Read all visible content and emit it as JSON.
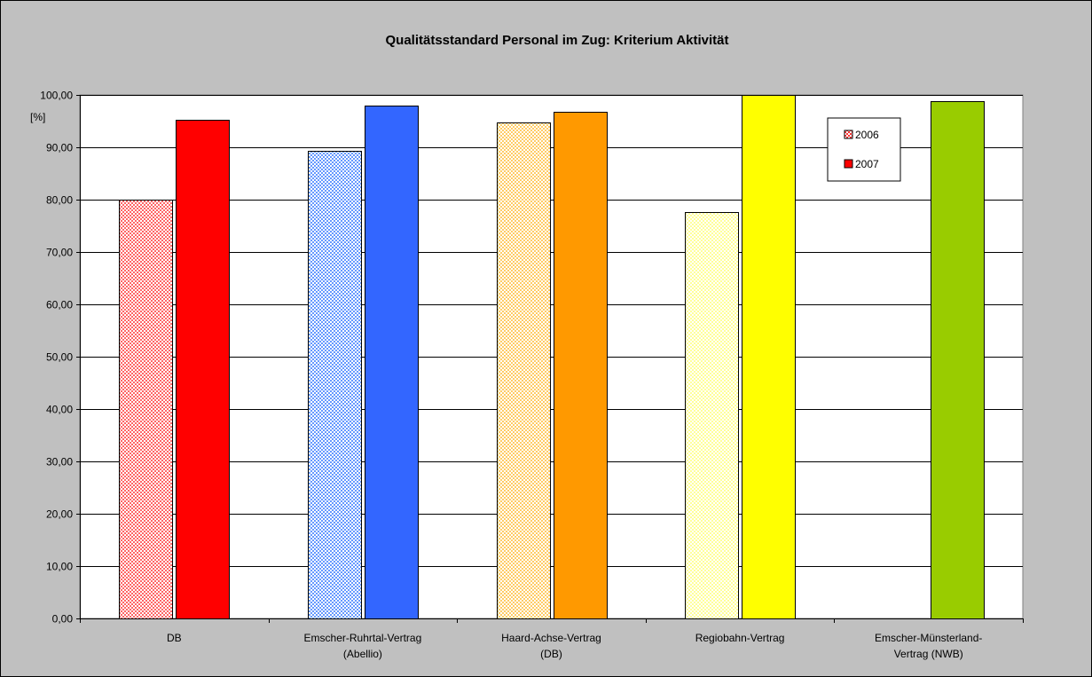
{
  "chart_data": {
    "type": "bar",
    "title": "Qualitätsstandard Personal im Zug: Kriterium Aktivität",
    "ylabel": "[%]",
    "xlabel": "",
    "ylim": [
      0,
      100
    ],
    "ytick_values": [
      0,
      10,
      20,
      30,
      40,
      50,
      60,
      70,
      80,
      90,
      100
    ],
    "ytick_labels": [
      "0,00",
      "10,00",
      "20,00",
      "30,00",
      "40,00",
      "50,00",
      "60,00",
      "70,00",
      "80,00",
      "90,00",
      "100,00"
    ],
    "categories": [
      [
        "DB"
      ],
      [
        "Emscher-Ruhrtal-Vertrag",
        "(Abellio)"
      ],
      [
        "Haard-Achse-Vertrag",
        "(DB)"
      ],
      [
        "Regiobahn-Vertrag"
      ],
      [
        "Emscher-Münsterland-",
        "Vertrag (NWB)"
      ]
    ],
    "series": [
      {
        "name": "2006",
        "values": [
          80.0,
          89.3,
          94.8,
          77.7,
          null
        ]
      },
      {
        "name": "2007",
        "values": [
          95.2,
          98.0,
          96.7,
          100.0,
          98.8
        ]
      }
    ],
    "colors": {
      "2006": [
        "#ff6666",
        "#6699ff",
        "#ffcc66",
        "#ffff99",
        "#99cc33"
      ],
      "2007": [
        "#ff0000",
        "#3366ff",
        "#ff9900",
        "#ffff00",
        "#99cc00"
      ]
    },
    "legend_colors": {
      "2006": "#ff3333",
      "2007": "#ff0000"
    },
    "grid": true,
    "legend_position": "top-right"
  }
}
